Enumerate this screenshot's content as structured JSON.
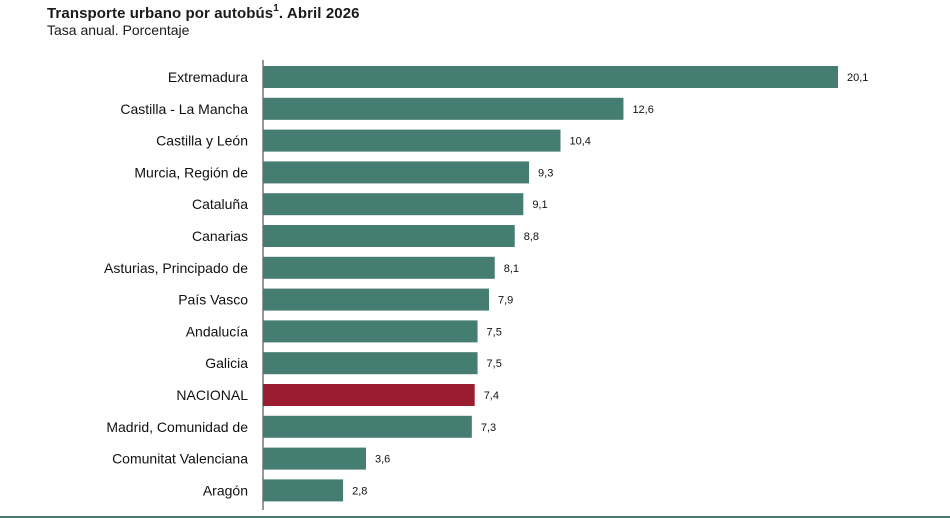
{
  "header": {
    "title_main": "Transporte urbano por autobús",
    "title_sup": "1",
    "title_tail": ". Abril 2026",
    "subtitle": "Tasa anual. Porcentaje"
  },
  "colors": {
    "bar": "#467d72",
    "highlight": "#9b1b30"
  },
  "chart_data": {
    "type": "bar",
    "orientation": "horizontal",
    "title": "Transporte urbano por autobús1. Abril 2026",
    "subtitle": "Tasa anual. Porcentaje",
    "categories": [
      "Extremadura",
      "Castilla - La Mancha",
      "Castilla y León",
      "Murcia, Región de",
      "Cataluña",
      "Canarias",
      "Asturias, Principado de",
      "País Vasco",
      "Andalucía",
      "Galicia",
      "NACIONAL",
      "Madrid, Comunidad de",
      "Comunitat Valenciana",
      "Aragón"
    ],
    "values": [
      20.1,
      12.6,
      10.4,
      9.3,
      9.1,
      8.8,
      8.1,
      7.9,
      7.5,
      7.5,
      7.4,
      7.3,
      3.6,
      2.8
    ],
    "value_labels": [
      "20,1",
      "12,6",
      "10,4",
      "9,3",
      "9,1",
      "8,8",
      "8,1",
      "7,9",
      "7,5",
      "7,5",
      "7,4",
      "7,3",
      "3,6",
      "2,8"
    ],
    "highlight_category": "NACIONAL",
    "xlim": [
      0,
      20.1
    ],
    "grid": false,
    "legend": "none"
  }
}
